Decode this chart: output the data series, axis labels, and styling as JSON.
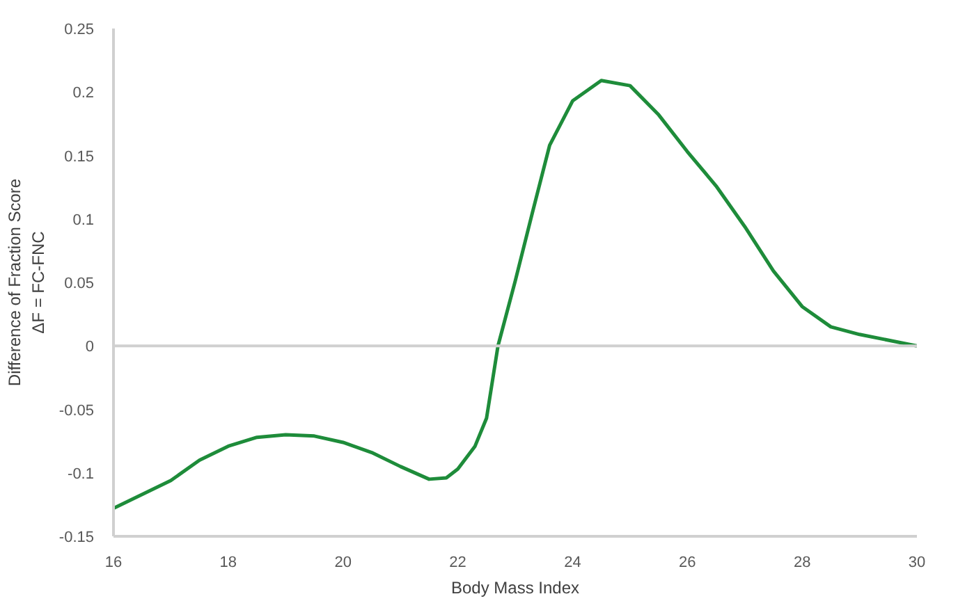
{
  "chart_data": {
    "type": "line",
    "xlabel": "Body Mass Index",
    "ylabel": "Difference of Fraction Score\nΔF = FC-FNC",
    "x": [
      16,
      17,
      17.5,
      18,
      18.5,
      19,
      19.5,
      20,
      20.5,
      21,
      21.5,
      21.8,
      22,
      22.3,
      22.5,
      22.7,
      23,
      23.3,
      23.6,
      24,
      24.5,
      25,
      25.5,
      26,
      26.5,
      27,
      27.5,
      28,
      28.5,
      29,
      30
    ],
    "series": [
      {
        "color": "#1e8c3a",
        "values": [
          -0.128,
          -0.106,
          -0.09,
          -0.079,
          -0.072,
          -0.07,
          -0.071,
          -0.076,
          -0.084,
          -0.095,
          -0.105,
          -0.104,
          -0.097,
          -0.079,
          -0.057,
          0,
          0.051,
          0.105,
          0.158,
          0.193,
          0.209,
          0.205,
          0.182,
          0.153,
          0.126,
          0.094,
          0.059,
          0.031,
          0.015,
          0.009,
          0
        ]
      }
    ],
    "xlim": [
      16,
      30
    ],
    "ylim": [
      -0.15,
      0.25
    ],
    "xticks": [
      16,
      18,
      20,
      22,
      24,
      26,
      28,
      30
    ],
    "yticks": [
      -0.15,
      -0.1,
      -0.05,
      0,
      0.05,
      0.1,
      0.15,
      0.2,
      0.25
    ],
    "ref_lines": [
      {
        "axis": "y",
        "value": 0,
        "color": "#d0d0d0"
      }
    ],
    "grid": false,
    "marker": "none",
    "line_style": "solid"
  }
}
